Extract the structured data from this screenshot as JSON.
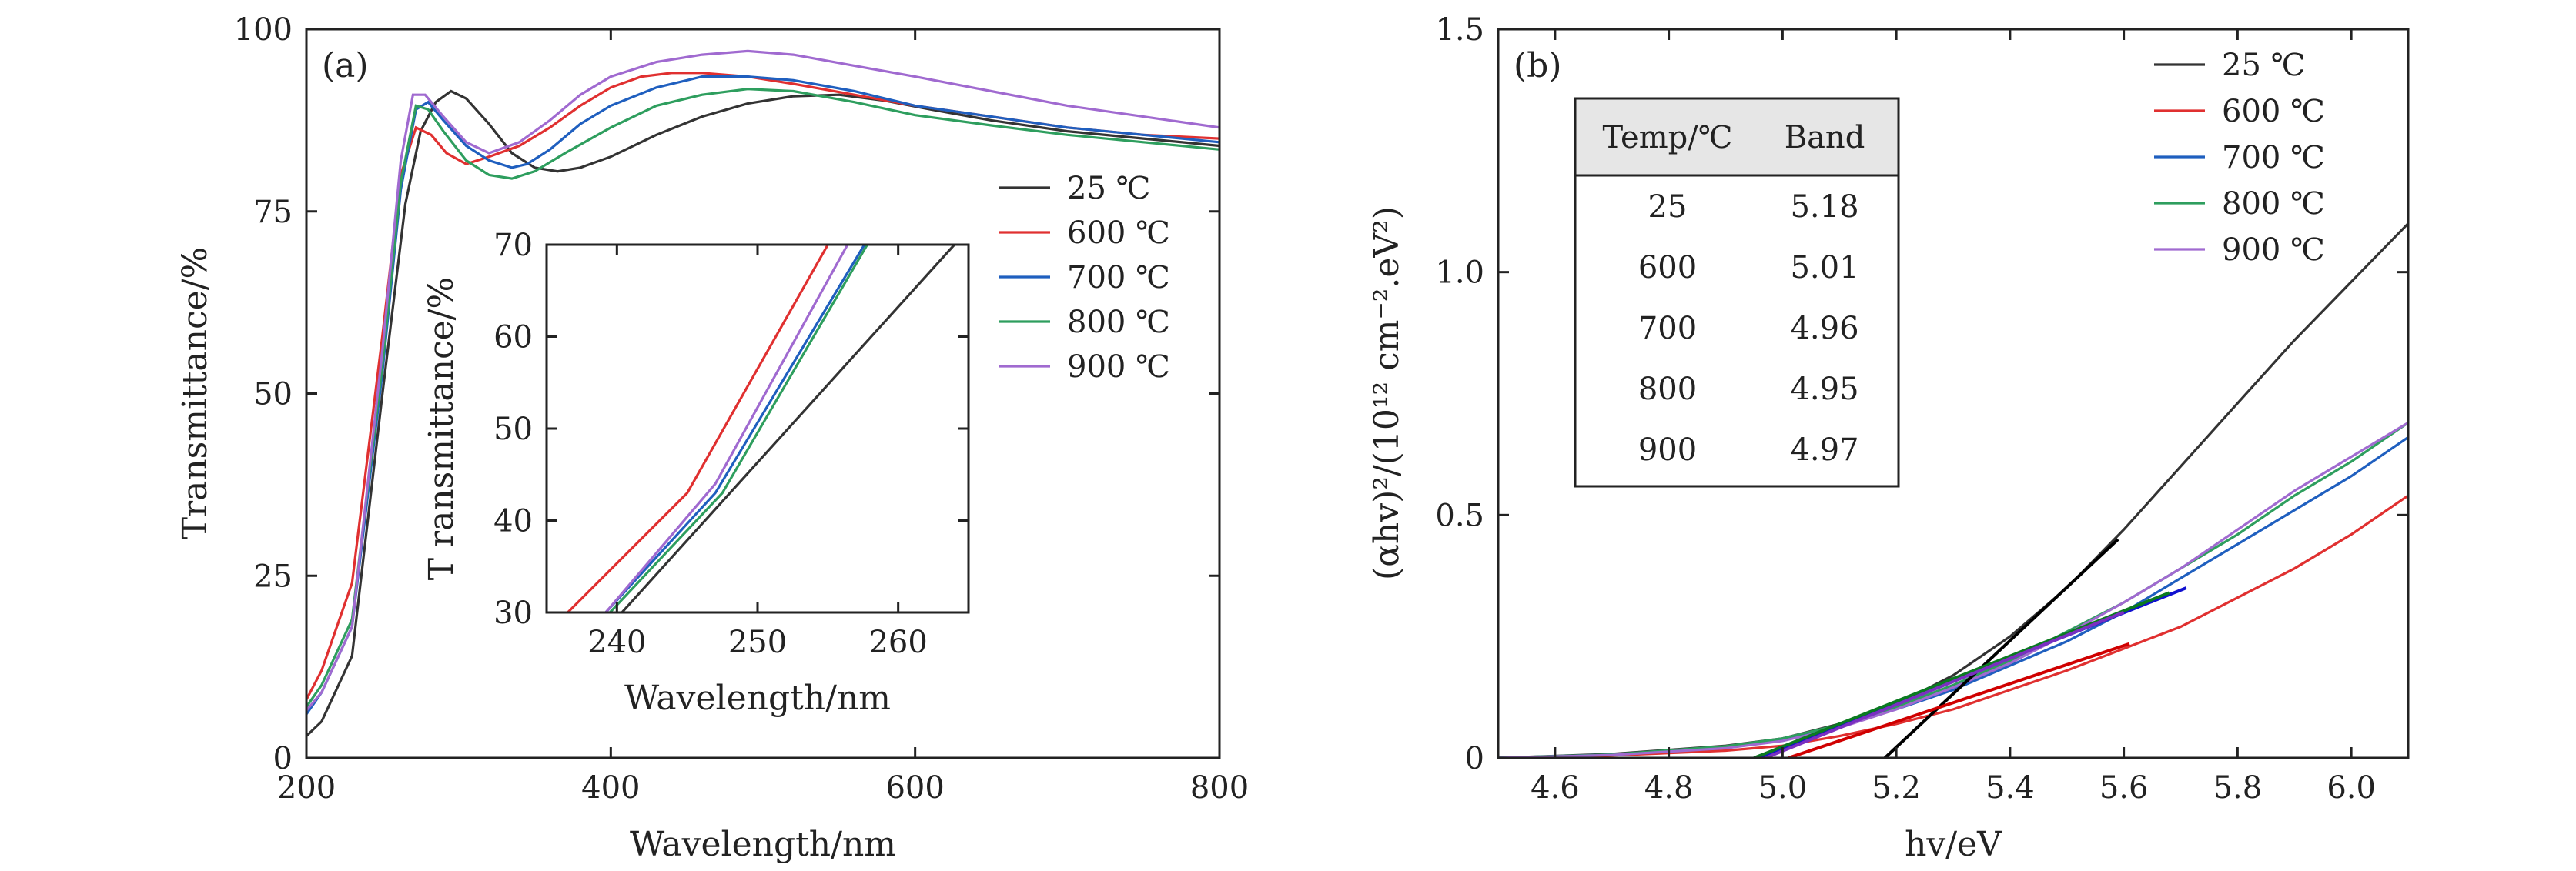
{
  "chart_data": [
    {
      "panel_label": "(a)",
      "type": "line",
      "xlabel": "Wavelength/nm",
      "ylabel": "Transmittance/%",
      "xlim": [
        200,
        800
      ],
      "ylim": [
        0,
        100
      ],
      "xticks": [
        "200",
        "400",
        "600",
        "800"
      ],
      "yticks": [
        "0",
        "25",
        "50",
        "75",
        "100"
      ],
      "legend": {
        "position": "right-middle",
        "entries": [
          "25 ℃",
          "600 ℃",
          "700 ℃",
          "800 ℃",
          "900 ℃"
        ]
      },
      "series": [
        {
          "name": "25 ℃",
          "color": "#333333",
          "points": [
            [
              200,
              3
            ],
            [
              210,
              5
            ],
            [
              230,
              14
            ],
            [
              250,
              50
            ],
            [
              265,
              76
            ],
            [
              275,
              86
            ],
            [
              285,
              90
            ],
            [
              295,
              91.5
            ],
            [
              305,
              90.5
            ],
            [
              320,
              87
            ],
            [
              335,
              83
            ],
            [
              350,
              81
            ],
            [
              365,
              80.5
            ],
            [
              380,
              81
            ],
            [
              400,
              82.5
            ],
            [
              430,
              85.5
            ],
            [
              460,
              88
            ],
            [
              490,
              89.8
            ],
            [
              520,
              90.8
            ],
            [
              550,
              91
            ],
            [
              580,
              90.2
            ],
            [
              610,
              89
            ],
            [
              650,
              87.5
            ],
            [
              700,
              86
            ],
            [
              750,
              85
            ],
            [
              800,
              84
            ]
          ]
        },
        {
          "name": "600 ℃",
          "color": "#e03030",
          "points": [
            [
              200,
              8
            ],
            [
              210,
              12
            ],
            [
              230,
              24
            ],
            [
              250,
              58
            ],
            [
              262,
              80
            ],
            [
              272,
              86.5
            ],
            [
              282,
              85.5
            ],
            [
              292,
              83
            ],
            [
              305,
              81.5
            ],
            [
              320,
              82.5
            ],
            [
              340,
              84
            ],
            [
              360,
              86.5
            ],
            [
              380,
              89.5
            ],
            [
              400,
              92
            ],
            [
              420,
              93.5
            ],
            [
              440,
              94
            ],
            [
              460,
              94
            ],
            [
              490,
              93.5
            ],
            [
              520,
              92.5
            ],
            [
              560,
              91
            ],
            [
              600,
              89.5
            ],
            [
              650,
              88
            ],
            [
              700,
              86.5
            ],
            [
              750,
              85.5
            ],
            [
              800,
              85
            ]
          ]
        },
        {
          "name": "700 ℃",
          "color": "#1f5fbf",
          "points": [
            [
              200,
              6
            ],
            [
              210,
              9
            ],
            [
              230,
              18
            ],
            [
              250,
              53
            ],
            [
              262,
              78
            ],
            [
              272,
              89
            ],
            [
              280,
              90
            ],
            [
              290,
              87.5
            ],
            [
              305,
              84
            ],
            [
              320,
              82
            ],
            [
              335,
              81
            ],
            [
              345,
              81.5
            ],
            [
              360,
              83.5
            ],
            [
              380,
              87
            ],
            [
              400,
              89.5
            ],
            [
              430,
              92
            ],
            [
              460,
              93.5
            ],
            [
              490,
              93.5
            ],
            [
              520,
              93
            ],
            [
              560,
              91.5
            ],
            [
              600,
              89.5
            ],
            [
              650,
              88
            ],
            [
              700,
              86.5
            ],
            [
              750,
              85.5
            ],
            [
              800,
              84.5
            ]
          ]
        },
        {
          "name": "800 ℃",
          "color": "#2e9e5e",
          "points": [
            [
              200,
              7
            ],
            [
              210,
              10
            ],
            [
              230,
              19
            ],
            [
              250,
              54
            ],
            [
              262,
              79
            ],
            [
              272,
              89.5
            ],
            [
              280,
              89
            ],
            [
              290,
              86
            ],
            [
              305,
              82
            ],
            [
              320,
              80
            ],
            [
              335,
              79.5
            ],
            [
              350,
              80.5
            ],
            [
              370,
              83
            ],
            [
              400,
              86.5
            ],
            [
              430,
              89.5
            ],
            [
              460,
              91
            ],
            [
              490,
              91.8
            ],
            [
              520,
              91.5
            ],
            [
              560,
              90
            ],
            [
              600,
              88.2
            ],
            [
              650,
              86.8
            ],
            [
              700,
              85.5
            ],
            [
              750,
              84.5
            ],
            [
              800,
              83.5
            ]
          ]
        },
        {
          "name": "900 ℃",
          "color": "#a06ad0",
          "points": [
            [
              200,
              6.5
            ],
            [
              210,
              9
            ],
            [
              230,
              18
            ],
            [
              250,
              56
            ],
            [
              262,
              82
            ],
            [
              270,
              91
            ],
            [
              278,
              91
            ],
            [
              290,
              88
            ],
            [
              305,
              84.5
            ],
            [
              320,
              83
            ],
            [
              340,
              84.5
            ],
            [
              360,
              87.5
            ],
            [
              380,
              91
            ],
            [
              400,
              93.5
            ],
            [
              430,
              95.5
            ],
            [
              460,
              96.5
            ],
            [
              490,
              97
            ],
            [
              520,
              96.5
            ],
            [
              560,
              95
            ],
            [
              600,
              93.5
            ],
            [
              650,
              91.5
            ],
            [
              700,
              89.5
            ],
            [
              750,
              88
            ],
            [
              800,
              86.5
            ]
          ]
        }
      ]
    },
    {
      "panel_label": "",
      "type": "line",
      "xlabel": "Wavelength/nm",
      "ylabel": "T ransmittance/%",
      "xlim": [
        235,
        265
      ],
      "ylim": [
        30,
        70
      ],
      "xticks": [
        "240",
        "250",
        "260"
      ],
      "yticks": [
        "30",
        "40",
        "50",
        "60",
        "70"
      ],
      "series": [
        {
          "name": "25 ℃",
          "color": "#333333",
          "points": [
            [
              240,
              29.4
            ],
            [
              264,
              70
            ]
          ]
        },
        {
          "name": "600 ℃",
          "color": "#e03030",
          "points": [
            [
              236.5,
              30
            ],
            [
              245,
              43
            ],
            [
              255,
              70
            ]
          ]
        },
        {
          "name": "700 ℃",
          "color": "#1f5fbf",
          "points": [
            [
              239.2,
              30
            ],
            [
              247,
              43
            ],
            [
              257.6,
              70
            ]
          ]
        },
        {
          "name": "800 ℃",
          "color": "#2e9e5e",
          "points": [
            [
              239.5,
              30
            ],
            [
              247.5,
              43
            ],
            [
              257.8,
              70
            ]
          ]
        },
        {
          "name": "900 ℃",
          "color": "#a06ad0",
          "points": [
            [
              239.2,
              30
            ],
            [
              247,
              44
            ],
            [
              256.4,
              70
            ]
          ]
        }
      ]
    },
    {
      "panel_label": "(b)",
      "type": "line",
      "xlabel": "hv/eV",
      "ylabel": "(αhv)²/(10¹² cm⁻².eV²)",
      "xlim": [
        4.5,
        6.1
      ],
      "ylim": [
        0,
        1.5
      ],
      "xticks": [
        "4.6",
        "4.8",
        "5.0",
        "5.2",
        "5.4",
        "5.6",
        "5.8",
        "6.0"
      ],
      "yticks": [
        "0",
        "0.5",
        "1.0",
        "1.5"
      ],
      "legend": {
        "position": "top-right",
        "entries": [
          "25 ℃",
          "600 ℃",
          "700 ℃",
          "800 ℃",
          "900 ℃"
        ]
      },
      "table": {
        "headers": [
          "Temp/℃",
          "Band"
        ],
        "rows": [
          [
            "25",
            "5.18"
          ],
          [
            "600",
            "5.01"
          ],
          [
            "700",
            "4.96"
          ],
          [
            "800",
            "4.95"
          ],
          [
            "900",
            "4.97"
          ]
        ]
      },
      "series": [
        {
          "name": "25 ℃",
          "color": "#333333",
          "points": [
            [
              4.5,
              0
            ],
            [
              4.7,
              0.008
            ],
            [
              4.9,
              0.025
            ],
            [
              5.0,
              0.04
            ],
            [
              5.1,
              0.07
            ],
            [
              5.2,
              0.11
            ],
            [
              5.3,
              0.17
            ],
            [
              5.4,
              0.25
            ],
            [
              5.5,
              0.35
            ],
            [
              5.6,
              0.47
            ],
            [
              5.7,
              0.6
            ],
            [
              5.8,
              0.73
            ],
            [
              5.9,
              0.86
            ],
            [
              6.0,
              0.98
            ],
            [
              6.1,
              1.1
            ]
          ]
        },
        {
          "name": "600 ℃",
          "color": "#e03030",
          "points": [
            [
              4.5,
              0
            ],
            [
              4.7,
              0.005
            ],
            [
              4.9,
              0.015
            ],
            [
              5.0,
              0.025
            ],
            [
              5.1,
              0.045
            ],
            [
              5.2,
              0.07
            ],
            [
              5.3,
              0.1
            ],
            [
              5.4,
              0.14
            ],
            [
              5.5,
              0.18
            ],
            [
              5.6,
              0.225
            ],
            [
              5.7,
              0.27
            ],
            [
              5.8,
              0.33
            ],
            [
              5.9,
              0.39
            ],
            [
              6.0,
              0.46
            ],
            [
              6.1,
              0.54
            ]
          ]
        },
        {
          "name": "700 ℃",
          "color": "#1f5fbf",
          "points": [
            [
              4.5,
              0
            ],
            [
              4.7,
              0.007
            ],
            [
              4.9,
              0.022
            ],
            [
              5.0,
              0.038
            ],
            [
              5.1,
              0.065
            ],
            [
              5.2,
              0.1
            ],
            [
              5.3,
              0.14
            ],
            [
              5.4,
              0.19
            ],
            [
              5.5,
              0.24
            ],
            [
              5.6,
              0.3
            ],
            [
              5.7,
              0.37
            ],
            [
              5.8,
              0.44
            ],
            [
              5.9,
              0.51
            ],
            [
              6.0,
              0.58
            ],
            [
              6.1,
              0.66
            ]
          ]
        },
        {
          "name": "800 ℃",
          "color": "#2e9e5e",
          "points": [
            [
              4.5,
              0
            ],
            [
              4.7,
              0.007
            ],
            [
              4.9,
              0.024
            ],
            [
              5.0,
              0.04
            ],
            [
              5.1,
              0.068
            ],
            [
              5.2,
              0.105
            ],
            [
              5.3,
              0.15
            ],
            [
              5.4,
              0.2
            ],
            [
              5.5,
              0.26
            ],
            [
              5.6,
              0.32
            ],
            [
              5.7,
              0.39
            ],
            [
              5.8,
              0.46
            ],
            [
              5.9,
              0.54
            ],
            [
              6.0,
              0.61
            ],
            [
              6.1,
              0.69
            ]
          ]
        },
        {
          "name": "900 ℃",
          "color": "#a06ad0",
          "points": [
            [
              4.5,
              0
            ],
            [
              4.7,
              0.006
            ],
            [
              4.9,
              0.02
            ],
            [
              5.0,
              0.035
            ],
            [
              5.1,
              0.062
            ],
            [
              5.2,
              0.1
            ],
            [
              5.3,
              0.145
            ],
            [
              5.4,
              0.195
            ],
            [
              5.5,
              0.255
            ],
            [
              5.6,
              0.32
            ],
            [
              5.7,
              0.39
            ],
            [
              5.8,
              0.47
            ],
            [
              5.9,
              0.55
            ],
            [
              6.0,
              0.62
            ],
            [
              6.1,
              0.69
            ]
          ]
        },
        {
          "name": "25 ℃ fit",
          "color": "#000000",
          "points": [
            [
              5.18,
              0
            ],
            [
              5.59,
              0.45
            ]
          ]
        },
        {
          "name": "600 ℃ fit",
          "color": "#d00000",
          "points": [
            [
              5.01,
              0
            ],
            [
              5.61,
              0.235
            ]
          ]
        },
        {
          "name": "700 ℃ fit",
          "color": "#1010d0",
          "points": [
            [
              4.96,
              0
            ],
            [
              5.71,
              0.35
            ]
          ]
        },
        {
          "name": "800 ℃ fit",
          "color": "#0a7a20",
          "points": [
            [
              4.95,
              0
            ],
            [
              5.68,
              0.34
            ]
          ]
        },
        {
          "name": "900 ℃ fit",
          "color": "#7a30c0",
          "points": [
            [
              4.97,
              0
            ],
            [
              5.6,
              0.3
            ]
          ]
        }
      ]
    }
  ]
}
